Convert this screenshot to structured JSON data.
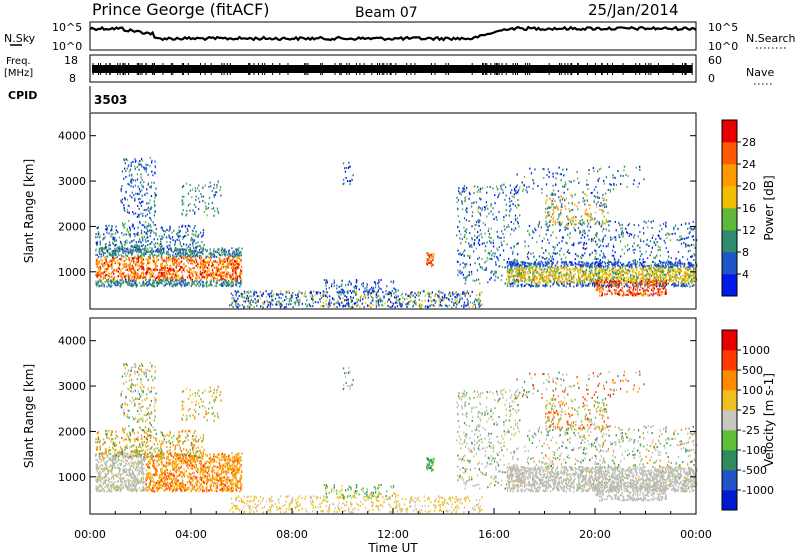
{
  "header": {
    "title": "Prince George (fitACF)",
    "beam": "Beam 07",
    "date": "25/Jan/2014"
  },
  "top_panels": {
    "nsky_label": "N.Sky",
    "nsky_ticks": [
      "10^5",
      "10^0"
    ],
    "nsearch_label": "N.Search",
    "nsearch_ticks": [
      "10^5",
      "10^0"
    ],
    "freq_label": "Freq.",
    "freq_unit": "[MHz]",
    "freq_ticks": [
      "18",
      "8"
    ],
    "nave_label": "Nave",
    "nave_ticks": [
      "60",
      "0"
    ],
    "cpid_label": "CPID",
    "cpid_value": "3503"
  },
  "colors": {
    "power_scale": [
      "#0018e8",
      "#1f55c8",
      "#2f8a70",
      "#5fb83a",
      "#f0c000",
      "#ff9a00",
      "#ff5a00",
      "#e80000"
    ],
    "velocity_scale": [
      "#0018d0",
      "#1f55c8",
      "#2f8a60",
      "#5fc03a",
      "#c8c8c0",
      "#f0c020",
      "#ff8a00",
      "#ff3800",
      "#e80000"
    ],
    "ground_scatter": "#bcbcb4"
  },
  "chart_data": [
    {
      "type": "heatmap",
      "ylabel": "Slant Range [km]",
      "yticks": [
        "4000",
        "3000",
        "2000",
        "1000"
      ],
      "ylim": [
        180,
        4500
      ],
      "colorbar_label": "Power [dB]",
      "colorbar_ticks": [
        "28",
        "24",
        "20",
        "16",
        "12",
        "8",
        "4"
      ],
      "colorbar_range": [
        0,
        32
      ]
    },
    {
      "type": "heatmap",
      "ylabel": "Slant Range [km]",
      "yticks": [
        "4000",
        "3000",
        "2000",
        "1000"
      ],
      "ylim": [
        180,
        4500
      ],
      "colorbar_label": "Velocity [m s-1]",
      "colorbar_ticks": [
        "1000",
        "500",
        "100",
        "25",
        "-25",
        "-100",
        "-500",
        "-1000"
      ],
      "xlabel": "Time UT",
      "xticks": [
        "00:00",
        "04:00",
        "08:00",
        "12:00",
        "16:00",
        "20:00",
        "00:00"
      ],
      "xlim": [
        0,
        24
      ]
    }
  ]
}
